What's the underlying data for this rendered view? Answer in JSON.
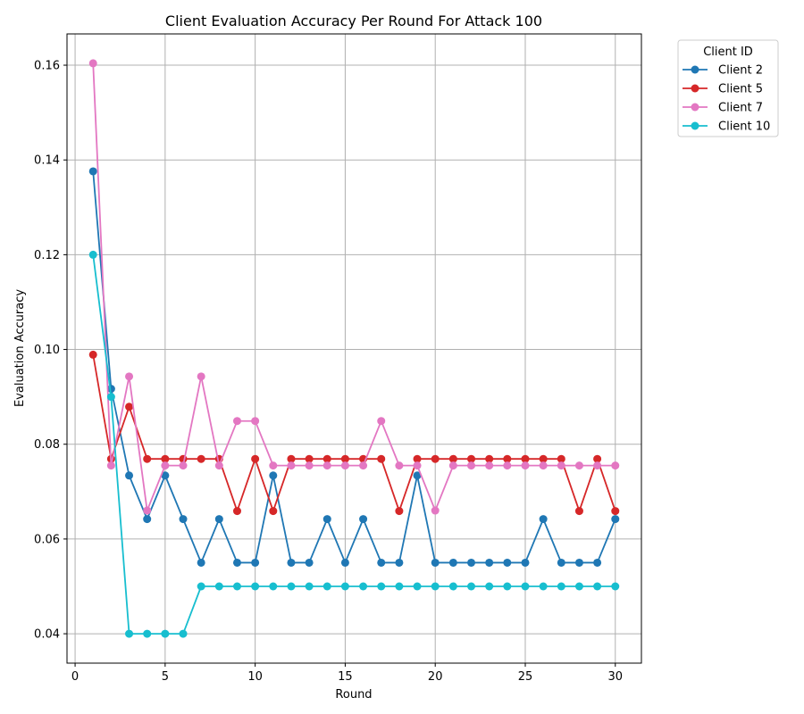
{
  "chart_data": {
    "type": "line",
    "title": "Client Evaluation Accuracy Per Round For Attack 100",
    "xlabel": "Round",
    "ylabel": "Evaluation Accuracy",
    "xlim": [
      -0.45,
      31.45
    ],
    "ylim": [
      0.0338,
      0.1666
    ],
    "xticks": [
      0,
      5,
      10,
      15,
      20,
      25,
      30
    ],
    "yticks": [
      0.04,
      0.06,
      0.08,
      0.1,
      0.12,
      0.14,
      0.16
    ],
    "ytick_labels": [
      "0.04",
      "0.06",
      "0.08",
      "0.10",
      "0.12",
      "0.14",
      "0.16"
    ],
    "grid": true,
    "legend": {
      "title": "Client ID",
      "placement": "outside-top-right"
    },
    "x": [
      1,
      2,
      3,
      4,
      5,
      6,
      7,
      8,
      9,
      10,
      11,
      12,
      13,
      14,
      15,
      16,
      17,
      18,
      19,
      20,
      21,
      22,
      23,
      24,
      25,
      26,
      27,
      28,
      29,
      30
    ],
    "series": [
      {
        "name": "Client 2",
        "color": "#1f77b4",
        "values": [
          0.1376,
          0.0917,
          0.0734,
          0.0642,
          0.0734,
          0.0642,
          0.055,
          0.0642,
          0.055,
          0.055,
          0.0734,
          0.055,
          0.055,
          0.0642,
          0.055,
          0.0642,
          0.055,
          0.055,
          0.0734,
          0.055,
          0.055,
          0.055,
          0.055,
          0.055,
          0.055,
          0.0642,
          0.055,
          0.055,
          0.055,
          0.0642
        ]
      },
      {
        "name": "Client 5",
        "color": "#d62728",
        "values": [
          0.0989,
          0.0769,
          0.0879,
          0.0769,
          0.0769,
          0.0769,
          0.0769,
          0.0769,
          0.0659,
          0.0769,
          0.0659,
          0.0769,
          0.0769,
          0.0769,
          0.0769,
          0.0769,
          0.0769,
          0.0659,
          0.0769,
          0.0769,
          0.0769,
          0.0769,
          0.0769,
          0.0769,
          0.0769,
          0.0769,
          0.0769,
          0.0659,
          0.0769,
          0.0659
        ]
      },
      {
        "name": "Client 7",
        "color": "#e377c2",
        "values": [
          0.1604,
          0.0755,
          0.0943,
          0.066,
          0.0755,
          0.0755,
          0.0943,
          0.0755,
          0.0849,
          0.0849,
          0.0755,
          0.0755,
          0.0755,
          0.0755,
          0.0755,
          0.0755,
          0.0849,
          0.0755,
          0.0755,
          0.066,
          0.0755,
          0.0755,
          0.0755,
          0.0755,
          0.0755,
          0.0755,
          0.0755,
          0.0755,
          0.0755,
          0.0755
        ]
      },
      {
        "name": "Client 10",
        "color": "#17becf",
        "values": [
          0.12,
          0.09,
          0.04,
          0.04,
          0.04,
          0.04,
          0.05,
          0.05,
          0.05,
          0.05,
          0.05,
          0.05,
          0.05,
          0.05,
          0.05,
          0.05,
          0.05,
          0.05,
          0.05,
          0.05,
          0.05,
          0.05,
          0.05,
          0.05,
          0.05,
          0.05,
          0.05,
          0.05,
          0.05,
          0.05
        ]
      }
    ]
  }
}
